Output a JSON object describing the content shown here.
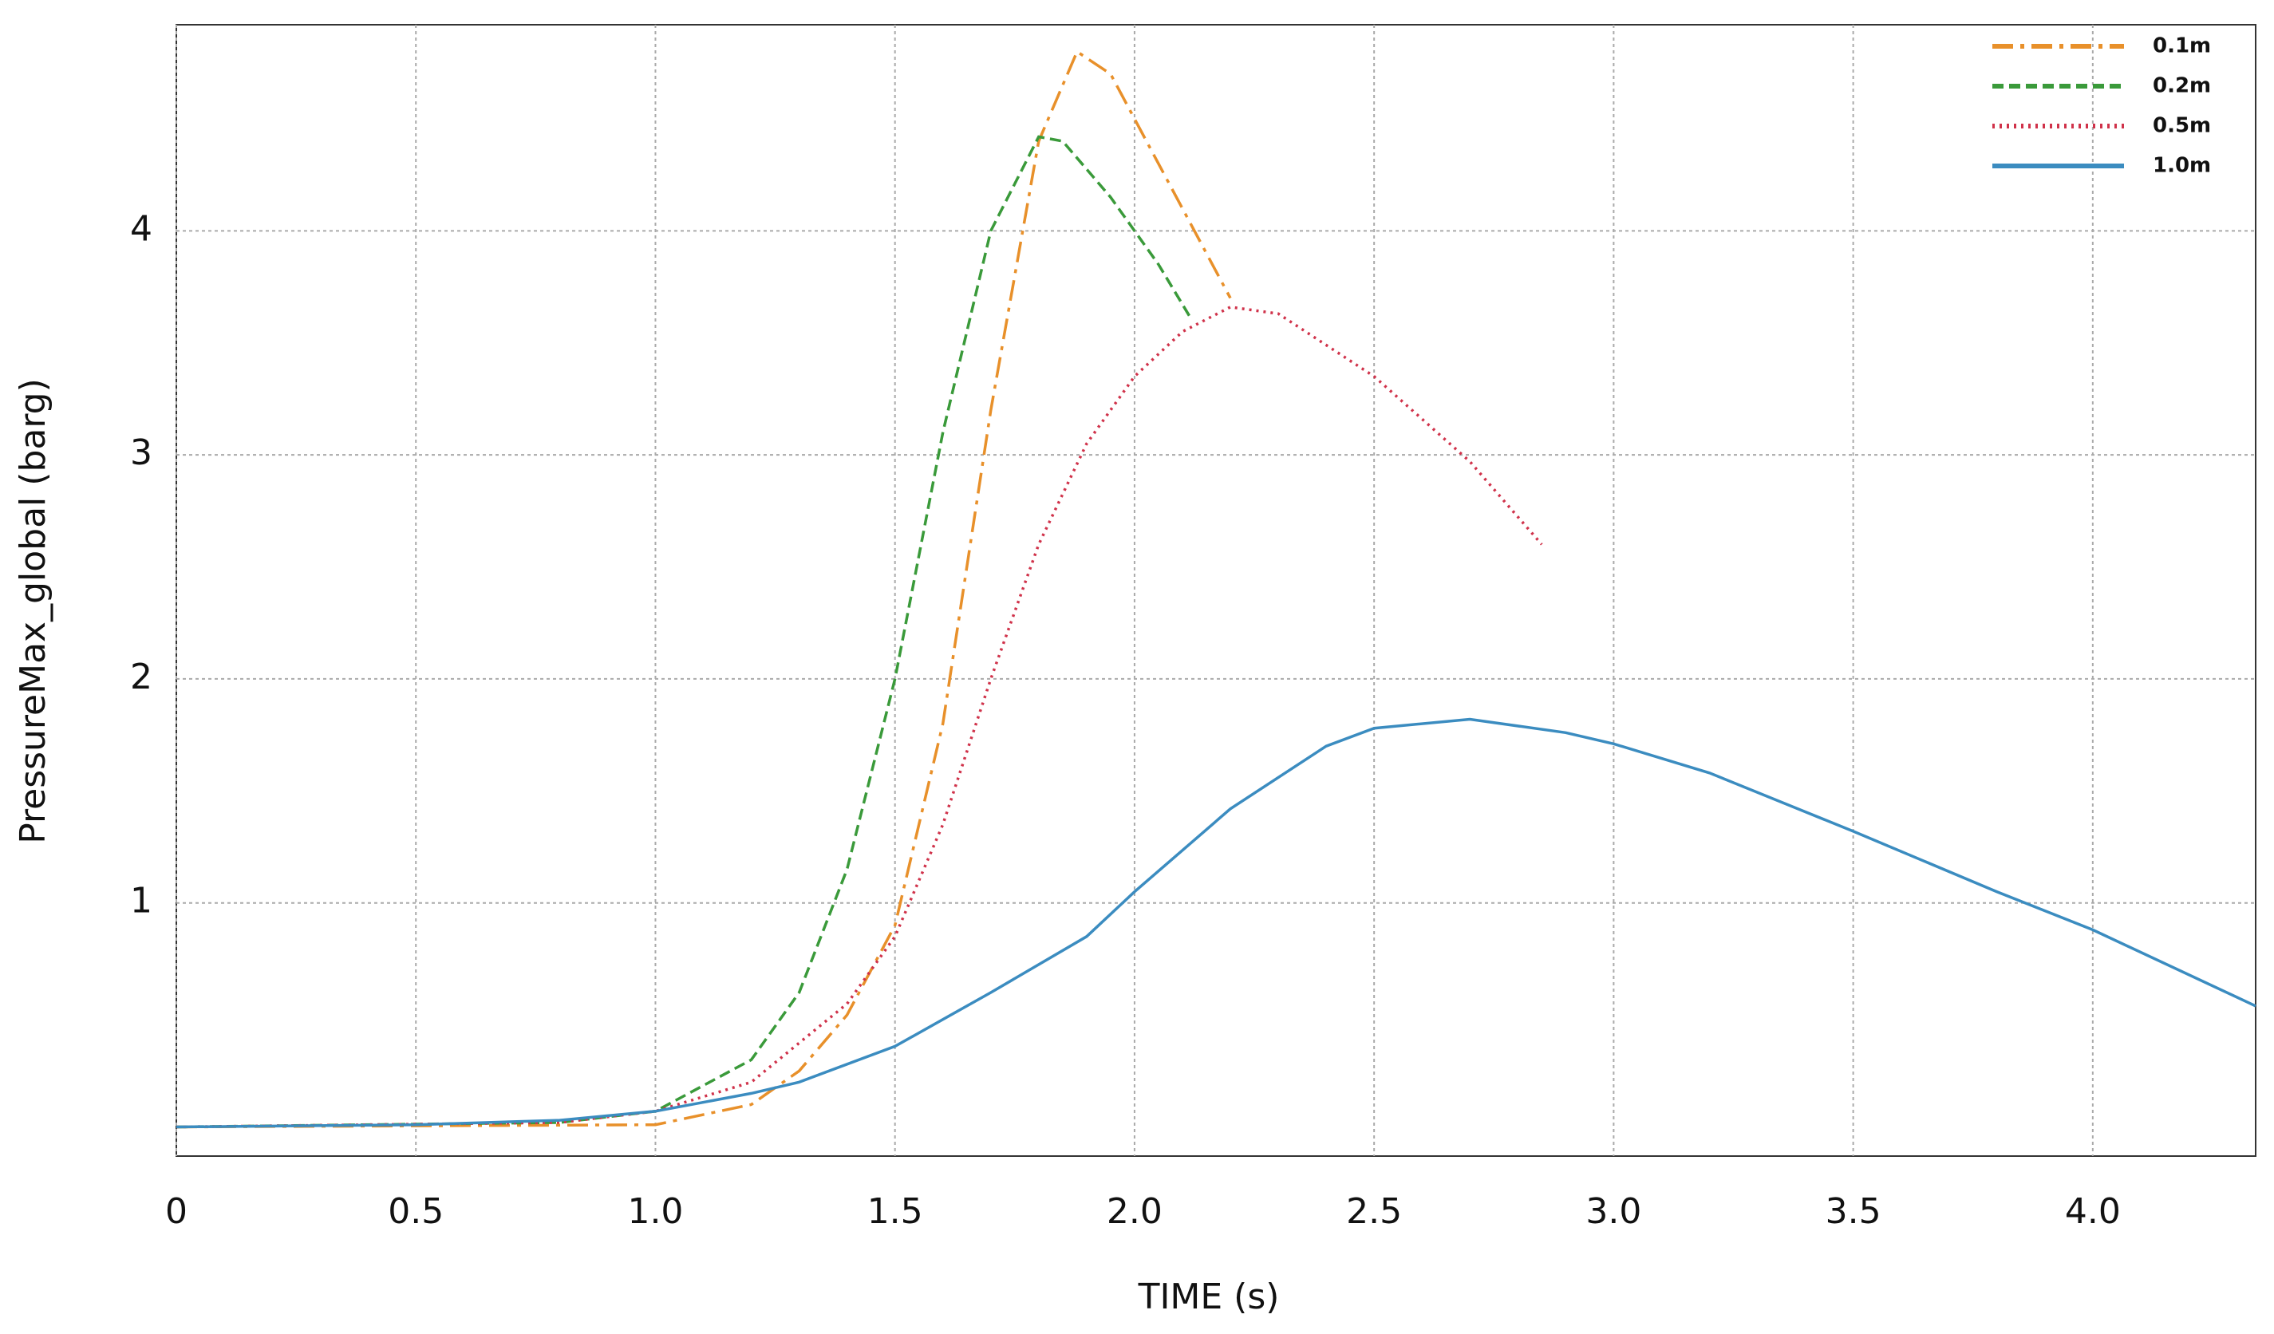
{
  "chart_data": {
    "type": "line",
    "x_label": "TIME (s)",
    "y_label": "PressureMax_global (barg)",
    "xlim": [
      0,
      4.34
    ],
    "ylim": [
      -0.13,
      4.92
    ],
    "xticks": [
      0,
      0.5,
      {
        "value": 1,
        "label": "1.0"
      },
      1.5,
      {
        "value": 2,
        "label": "2.0"
      },
      2.5,
      {
        "value": 3,
        "label": "3.0"
      },
      3.5,
      {
        "value": 4,
        "label": "4.0"
      }
    ],
    "yticks": [
      1,
      2,
      3,
      4
    ],
    "grid": true,
    "legend": "upper right",
    "series": [
      {
        "name": "0.1m",
        "color": "#e8902a",
        "dash": "dashdot",
        "x": [
          0,
          1.0,
          1.2,
          1.3,
          1.4,
          1.5,
          1.6,
          1.7,
          1.8,
          1.88,
          1.95,
          2.05,
          2.2
        ],
        "values": [
          0,
          0.01,
          0.1,
          0.25,
          0.5,
          0.9,
          1.8,
          3.2,
          4.4,
          4.8,
          4.7,
          4.3,
          3.7
        ]
      },
      {
        "name": "0.2m",
        "color": "#3a9a3a",
        "dash": "dashed",
        "x": [
          0,
          0.8,
          1.0,
          1.2,
          1.3,
          1.4,
          1.5,
          1.6,
          1.7,
          1.8,
          1.85,
          1.95,
          2.05,
          2.12
        ],
        "values": [
          0,
          0.02,
          0.07,
          0.3,
          0.6,
          1.15,
          2.0,
          3.1,
          4.0,
          4.42,
          4.4,
          4.15,
          3.85,
          3.6
        ]
      },
      {
        "name": "0.5m",
        "color": "#d0324a",
        "dash": "dotted",
        "x": [
          0,
          0.8,
          1.0,
          1.2,
          1.4,
          1.5,
          1.6,
          1.7,
          1.8,
          1.9,
          2.0,
          2.1,
          2.2,
          2.3,
          2.5,
          2.7,
          2.85
        ],
        "values": [
          0,
          0.02,
          0.07,
          0.2,
          0.55,
          0.85,
          1.35,
          2.0,
          2.6,
          3.05,
          3.35,
          3.55,
          3.66,
          3.63,
          3.35,
          2.97,
          2.6
        ]
      },
      {
        "name": "1.0m",
        "color": "#3b8cc0",
        "dash": "solid",
        "x": [
          0,
          0.5,
          0.8,
          1.0,
          1.2,
          1.3,
          1.5,
          1.7,
          1.9,
          2.0,
          2.2,
          2.4,
          2.5,
          2.7,
          2.9,
          3.0,
          3.2,
          3.5,
          3.8,
          4.0,
          4.34
        ],
        "values": [
          0,
          0.01,
          0.03,
          0.07,
          0.15,
          0.2,
          0.36,
          0.6,
          0.85,
          1.05,
          1.42,
          1.7,
          1.78,
          1.82,
          1.76,
          1.71,
          1.58,
          1.32,
          1.05,
          0.88,
          0.54
        ]
      }
    ]
  }
}
